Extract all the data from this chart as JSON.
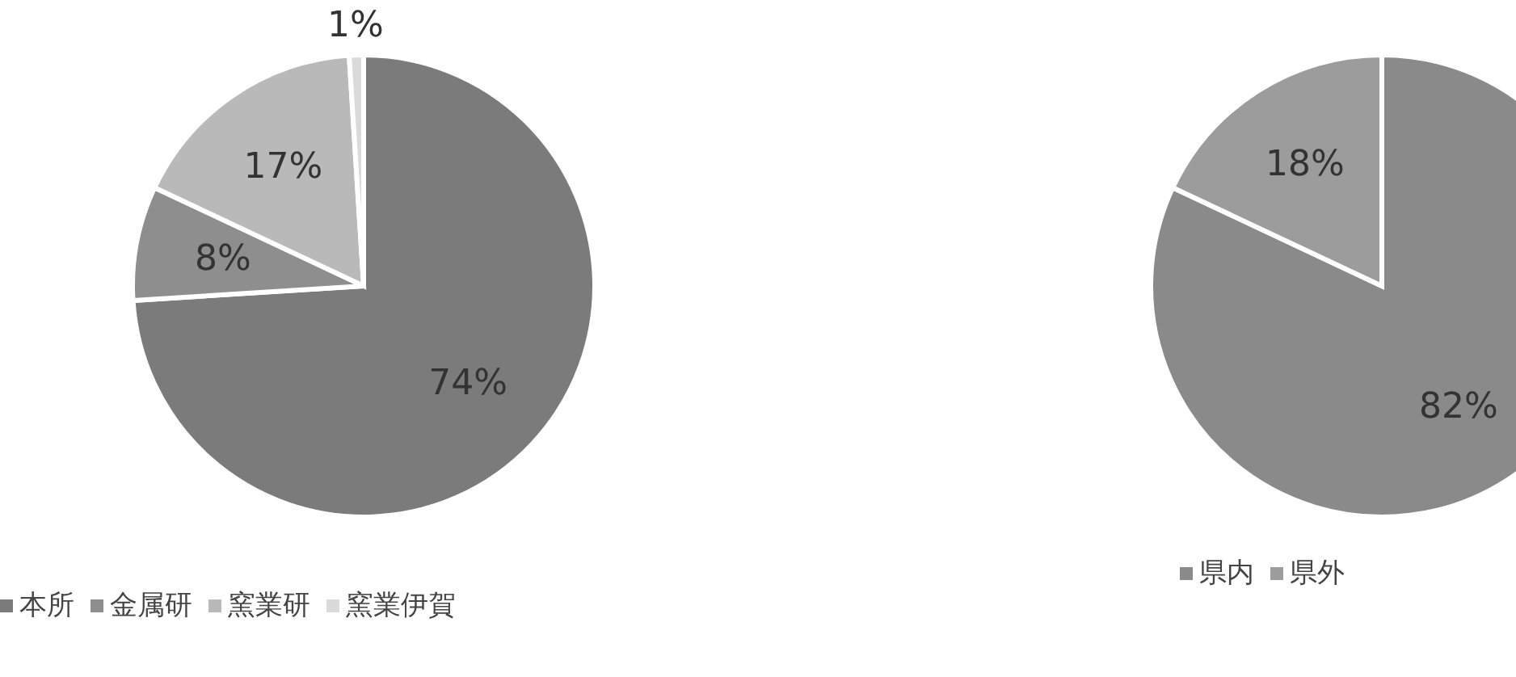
{
  "chart_data": [
    {
      "type": "pie",
      "categories": [
        "本所",
        "金属研",
        "窯業研",
        "窯業伊賀"
      ],
      "values": [
        74,
        8,
        17,
        1
      ],
      "value_labels": [
        "74%",
        "8%",
        "17%",
        "1%"
      ],
      "colors": [
        "#7b7b7b",
        "#8e8e8e",
        "#b9b9b9",
        "#dadada"
      ],
      "legend": "bottom"
    },
    {
      "type": "pie",
      "categories": [
        "県内",
        "県外"
      ],
      "values": [
        82,
        18
      ],
      "value_labels": [
        "82%",
        "18%"
      ],
      "colors": [
        "#8a8a8a",
        "#9c9c9c"
      ],
      "legend": "bottom"
    }
  ]
}
